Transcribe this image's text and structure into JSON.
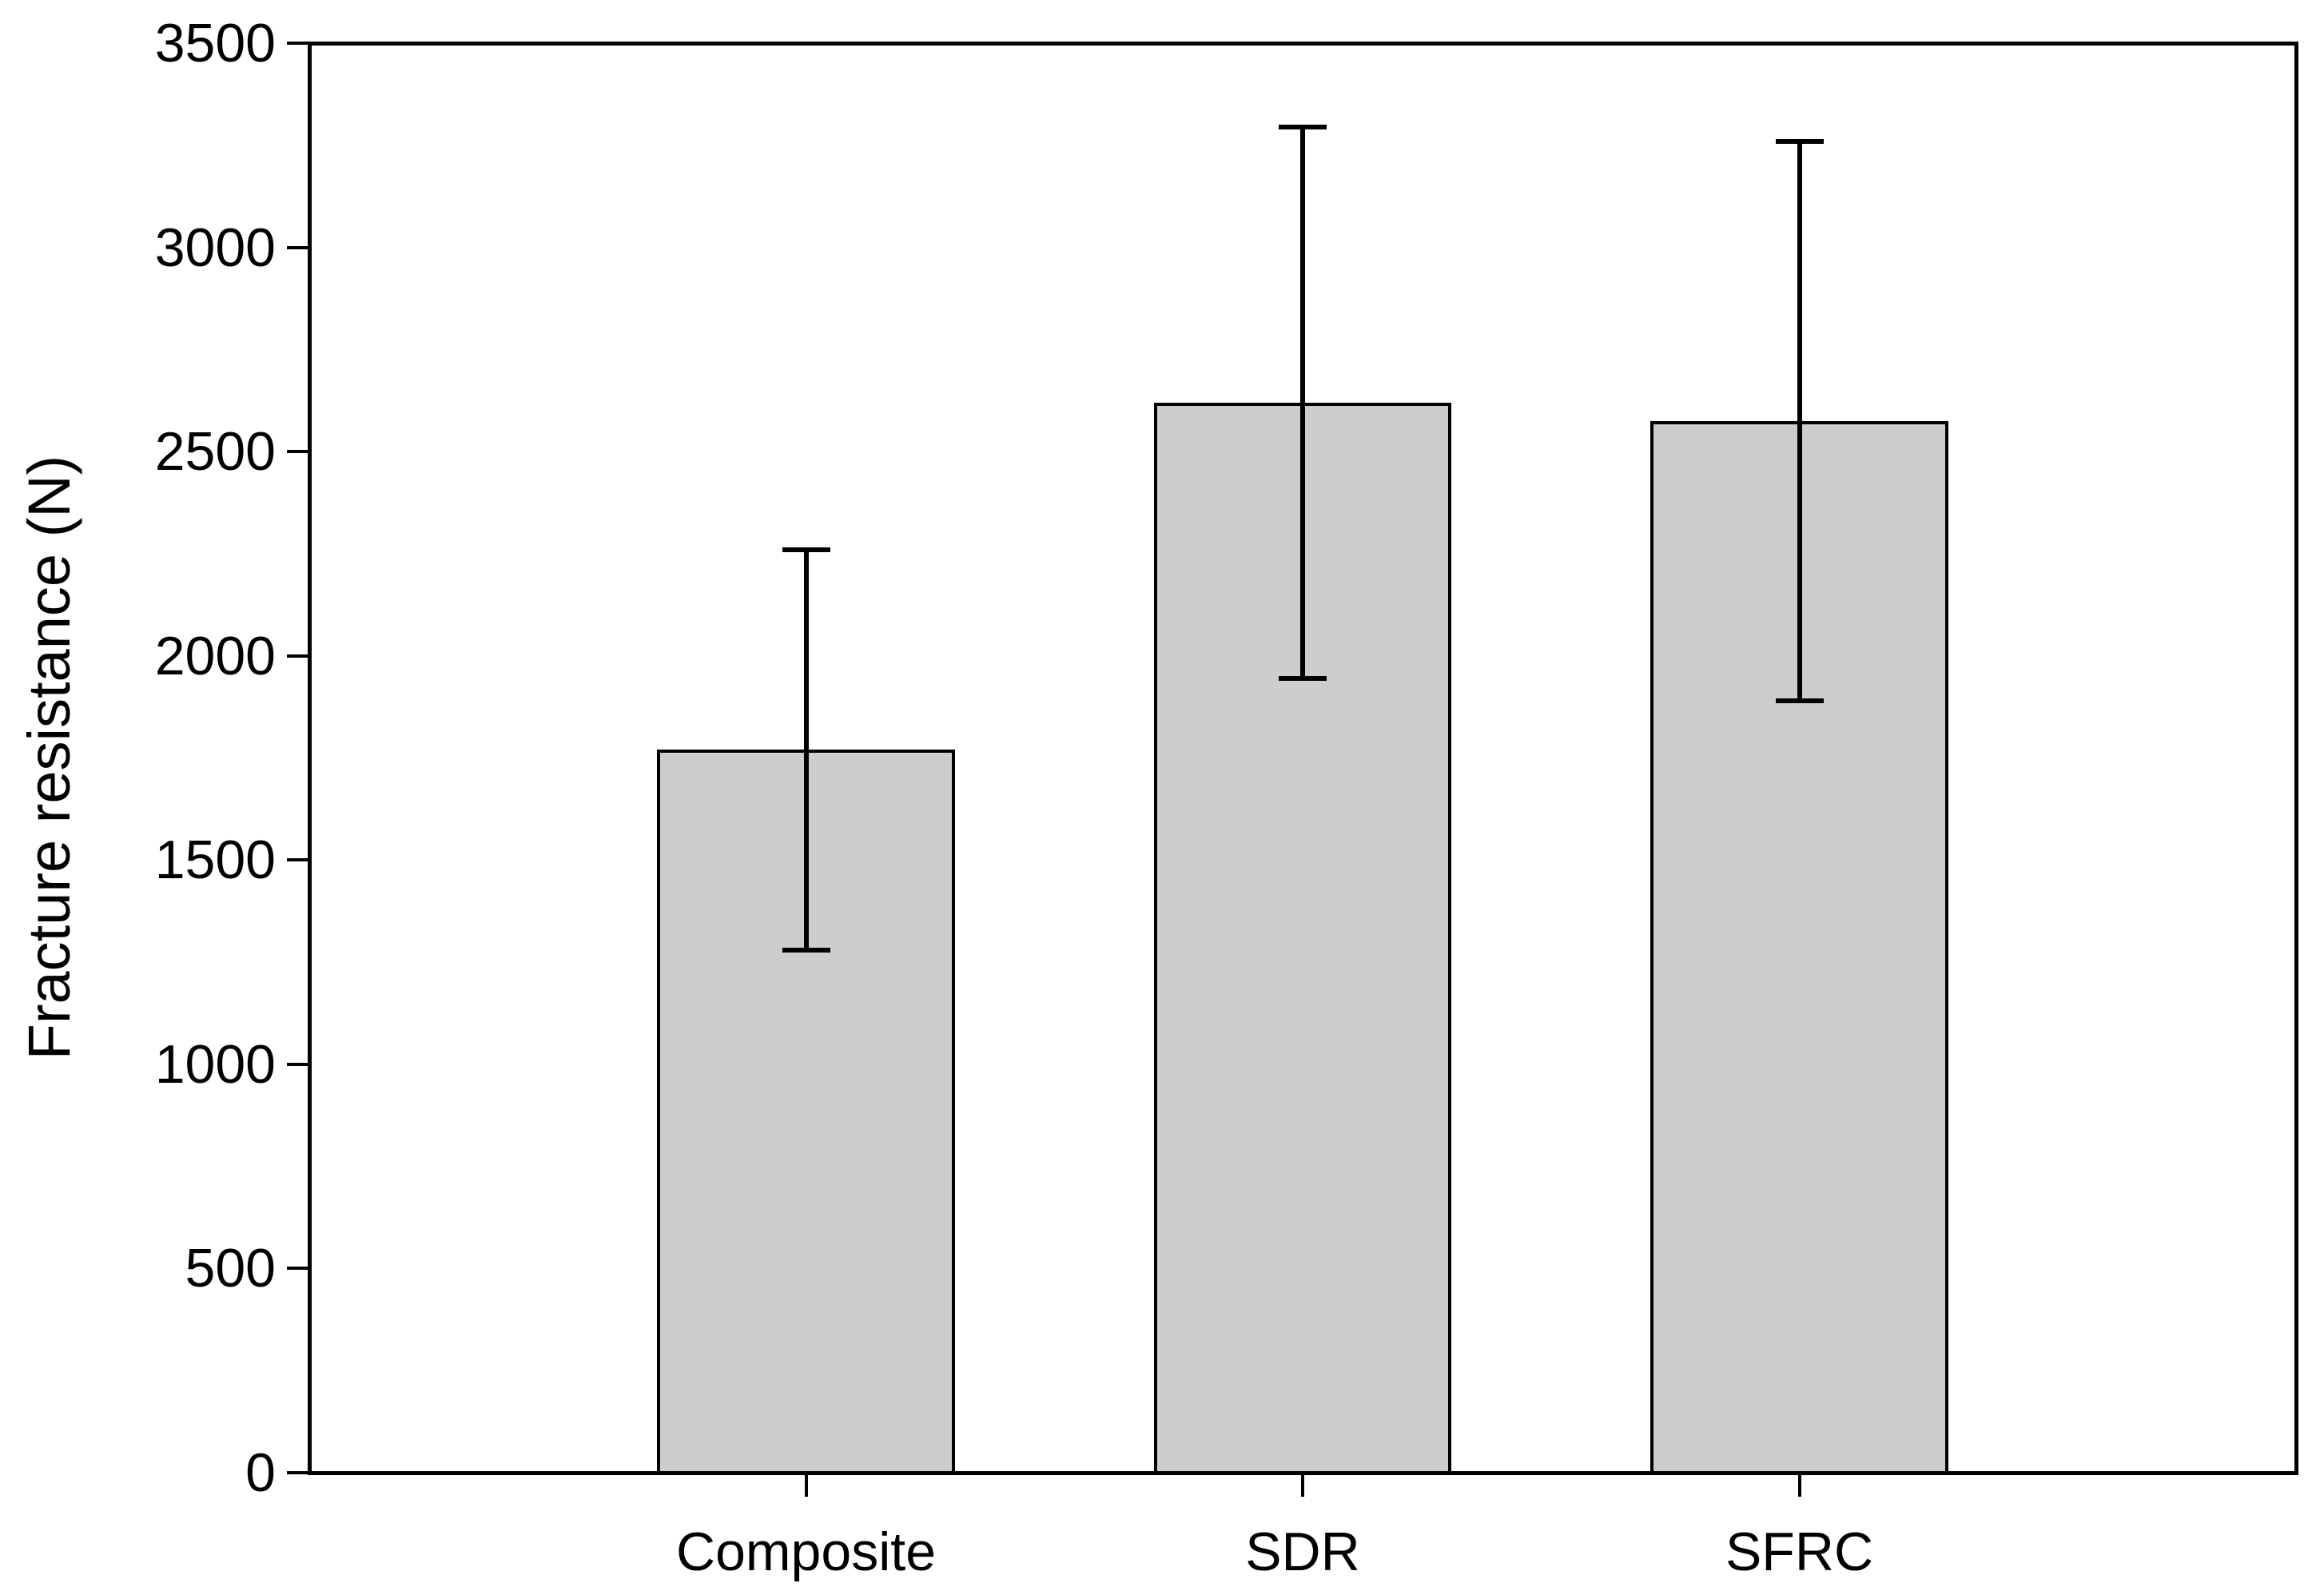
{
  "chart_data": {
    "type": "bar",
    "title": "",
    "xlabel": "",
    "ylabel": "Fracture resistance (N)",
    "categories": [
      "Composite",
      "SDR",
      "SFRC"
    ],
    "values": [
      1770,
      2620,
      2575
    ],
    "errors": [
      490,
      675,
      685
    ],
    "error_style": "symmetric caps above and below bar top",
    "ylim": [
      0,
      3500
    ],
    "ytick_step": 500,
    "ytick_labels": [
      "0",
      "500",
      "1000",
      "1500",
      "2000",
      "2500",
      "3000",
      "3500"
    ],
    "grid": false,
    "legend": null,
    "bar_fill_color": "#cdcdcd",
    "line_color": "#000000",
    "background_color": "#ffffff"
  }
}
